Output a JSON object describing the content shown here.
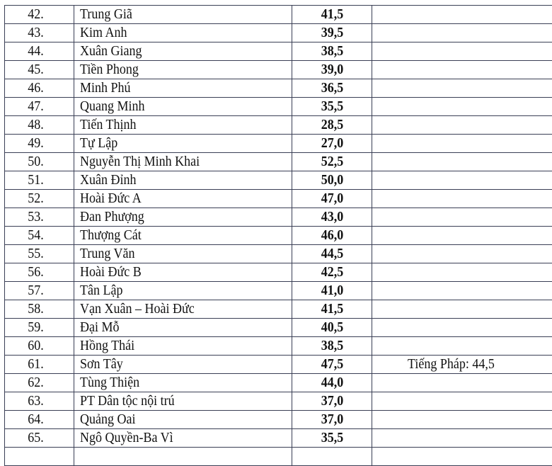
{
  "rows": [
    {
      "no": "42.",
      "name": "Trung Giã",
      "score": "41,5",
      "note": ""
    },
    {
      "no": "43.",
      "name": "Kim Anh",
      "score": "39,5",
      "note": ""
    },
    {
      "no": "44.",
      "name": "Xuân Giang",
      "score": "38,5",
      "note": ""
    },
    {
      "no": "45.",
      "name": "Tiền Phong",
      "score": "39,0",
      "note": ""
    },
    {
      "no": "46.",
      "name": "Minh Phú",
      "score": "36,5",
      "note": ""
    },
    {
      "no": "47.",
      "name": "Quang Minh",
      "score": "35,5",
      "note": ""
    },
    {
      "no": "48.",
      "name": "Tiến Thịnh",
      "score": "28,5",
      "note": ""
    },
    {
      "no": "49.",
      "name": "Tự Lập",
      "score": "27,0",
      "note": ""
    },
    {
      "no": "50.",
      "name": "Nguyễn Thị Minh Khai",
      "score": "52,5",
      "note": ""
    },
    {
      "no": "51.",
      "name": "Xuân Đỉnh",
      "score": "50,0",
      "note": ""
    },
    {
      "no": "52.",
      "name": "Hoài Đức A",
      "score": "47,0",
      "note": ""
    },
    {
      "no": "53.",
      "name": "Đan Phượng",
      "score": "43,0",
      "note": ""
    },
    {
      "no": "54.",
      "name": "Thượng Cát",
      "score": "46,0",
      "note": ""
    },
    {
      "no": "55.",
      "name": "Trung Văn",
      "score": "44,5",
      "note": ""
    },
    {
      "no": "56.",
      "name": "Hoài Đức B",
      "score": "42,5",
      "note": ""
    },
    {
      "no": "57.",
      "name": "Tân Lập",
      "score": "41,0",
      "note": ""
    },
    {
      "no": "58.",
      "name": "Vạn Xuân – Hoài Đức",
      "score": "41,5",
      "note": ""
    },
    {
      "no": "59.",
      "name": "Đại Mỗ",
      "score": "40,5",
      "note": ""
    },
    {
      "no": "60.",
      "name": "Hồng Thái",
      "score": "38,5",
      "note": ""
    },
    {
      "no": "61.",
      "name": " Sơn Tây",
      "score": "47,5",
      "note": "Tiếng Pháp: 44,5"
    },
    {
      "no": "62.",
      "name": "Tùng Thiện",
      "score": "44,0",
      "note": ""
    },
    {
      "no": "63.",
      "name": "PT Dân tộc nội trú",
      "score": "37,0",
      "note": ""
    },
    {
      "no": "64.",
      "name": "Quảng Oai",
      "score": "37,0",
      "note": ""
    },
    {
      "no": "65.",
      "name": "Ngô Quyền-Ba Vì",
      "score": "35,5",
      "note": ""
    }
  ]
}
